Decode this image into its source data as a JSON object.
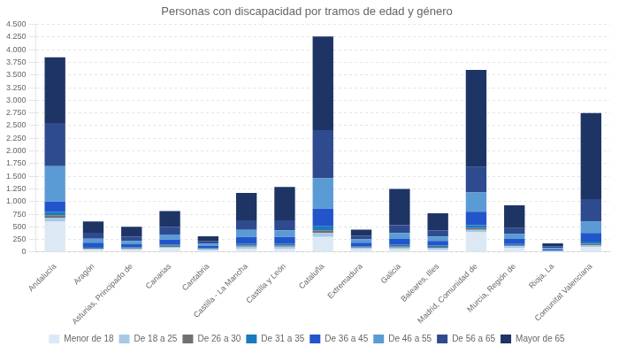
{
  "chart_data": {
    "type": "bar",
    "title": "Personas con discapacidad por tramos de edad y género",
    "stacked": true,
    "categories": [
      "Andalucía",
      "Aragón",
      "Asturias, Principado de",
      "Canarias",
      "Cantabria",
      "Castilla - La Mancha",
      "Castilla y León",
      "Cataluña",
      "Extremadura",
      "Galicia",
      "Baleares, Illes",
      "Madrid, Comunidad de",
      "Murcia, Región de",
      "Rioja, La",
      "Comunitat Valenciana"
    ],
    "series": [
      {
        "name": "Menor de 18",
        "color": "#dce9f5",
        "values": [
          600,
          50,
          50,
          80,
          40,
          70,
          70,
          300,
          55,
          55,
          50,
          390,
          80,
          15,
          100
        ]
      },
      {
        "name": "De 18 a 25",
        "color": "#a8c8e8",
        "values": [
          80,
          20,
          20,
          25,
          15,
          40,
          40,
          80,
          25,
          35,
          35,
          50,
          35,
          8,
          40
        ]
      },
      {
        "name": "De 26 a 30",
        "color": "#707070",
        "values": [
          50,
          15,
          10,
          20,
          10,
          25,
          25,
          50,
          15,
          25,
          20,
          35,
          20,
          5,
          25
        ]
      },
      {
        "name": "De 31 a 35",
        "color": "#1a7abf",
        "values": [
          70,
          20,
          15,
          25,
          12,
          35,
          35,
          80,
          20,
          35,
          25,
          55,
          25,
          7,
          45
        ]
      },
      {
        "name": "De 36 a 45",
        "color": "#2255cc",
        "values": [
          200,
          80,
          60,
          100,
          45,
          130,
          130,
          350,
          70,
          110,
          90,
          270,
          100,
          20,
          170
        ]
      },
      {
        "name": "De 46 a 55",
        "color": "#5b9bd5",
        "values": [
          700,
          80,
          65,
          100,
          45,
          140,
          130,
          600,
          70,
          120,
          90,
          380,
          95,
          25,
          220
        ]
      },
      {
        "name": "De 56 a 65",
        "color": "#2e4b8f",
        "values": [
          850,
          120,
          90,
          150,
          55,
          190,
          200,
          950,
          70,
          150,
          120,
          500,
          120,
          35,
          450
        ]
      },
      {
        "name": "Mayor de 65",
        "color": "#1e3465",
        "values": [
          1300,
          220,
          190,
          310,
          90,
          540,
          660,
          1850,
          120,
          720,
          340,
          1920,
          450,
          60,
          1700
        ]
      }
    ],
    "ylim": [
      0,
      4500
    ],
    "yticks": [
      0,
      250,
      500,
      750,
      {
        "value": 1000,
        "label": "1.000"
      },
      {
        "value": 1250,
        "label": "1.250"
      },
      {
        "value": 1500,
        "label": "1.500"
      },
      {
        "value": 1750,
        "label": "1.750"
      },
      {
        "value": 2000,
        "label": "2.000"
      },
      {
        "value": 2250,
        "label": "2.250"
      },
      {
        "value": 2500,
        "label": "2.500"
      },
      {
        "value": 2750,
        "label": "2.750"
      },
      {
        "value": 3000,
        "label": "3.000"
      },
      {
        "value": 3250,
        "label": "3.250"
      },
      {
        "value": 3500,
        "label": "3.500"
      },
      {
        "value": 3750,
        "label": "3.750"
      },
      {
        "value": 4000,
        "label": "4.000"
      },
      {
        "value": 4250,
        "label": "4.250"
      },
      {
        "value": 4500,
        "label": "4.500"
      }
    ],
    "grid": true,
    "legend": "bottom"
  }
}
